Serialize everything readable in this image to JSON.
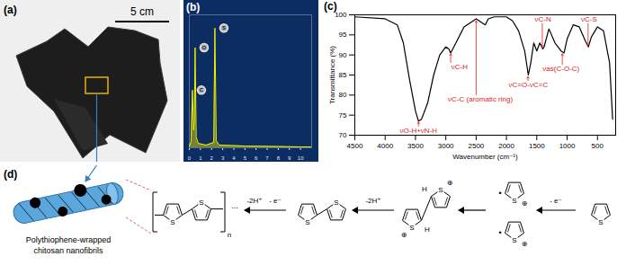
{
  "photo": {
    "label": "(a)",
    "scale_bar": "5 cm"
  },
  "chart_data": [
    {
      "type": "line",
      "title": "(b)",
      "x": [
        0,
        0.15,
        0.28,
        0.38,
        0.45,
        0.52,
        0.62,
        0.8,
        1.5,
        2.2,
        2.3,
        2.42,
        2.7,
        5,
        10,
        11
      ],
      "values": [
        2,
        6,
        65,
        20,
        30,
        113,
        12,
        5,
        3,
        6,
        135,
        8,
        3,
        2,
        1,
        1
      ],
      "color": "#f2ee00",
      "xlim": [
        0,
        11
      ],
      "xticks": [
        0,
        1,
        2,
        3,
        4,
        5,
        6,
        7,
        8,
        9,
        10
      ],
      "ylim": [
        0,
        150
      ],
      "tick_labels": "x",
      "grid": false,
      "annotations": [
        {
          "text": "C",
          "x": 0.28,
          "y": 65
        },
        {
          "text": "O",
          "x": 0.52,
          "y": 113
        },
        {
          "text": "S",
          "x": 2.3,
          "y": 135
        }
      ]
    },
    {
      "type": "line",
      "title": "(c)",
      "x_label": "Wavenumber (cm⁻¹)",
      "y_label": "Transmittance (%)",
      "x": [
        4500,
        4000,
        3800,
        3700,
        3600,
        3500,
        3450,
        3400,
        3300,
        3200,
        3100,
        3000,
        2950,
        2920,
        2850,
        2700,
        2500,
        2400,
        2350,
        2300,
        2200,
        2000,
        1900,
        1800,
        1700,
        1640,
        1600,
        1550,
        1500,
        1450,
        1400,
        1380,
        1300,
        1200,
        1100,
        1050,
        1000,
        900,
        800,
        700,
        650,
        600,
        500,
        400,
        300,
        250
      ],
      "values": [
        99.5,
        99,
        97.5,
        93,
        84,
        76,
        73.5,
        74,
        78,
        85,
        90,
        92,
        91.5,
        90.5,
        92.5,
        97,
        99,
        98,
        97.5,
        99,
        99.5,
        99.5,
        98.5,
        96,
        91,
        85,
        88,
        93,
        91,
        93,
        91.5,
        92,
        96.5,
        93,
        91,
        90.5,
        94,
        97.5,
        97,
        93.5,
        92,
        94.5,
        97,
        96,
        88,
        74
      ],
      "color": "#000000",
      "xlim": [
        4500,
        200
      ],
      "xticks": [
        4500,
        4000,
        3500,
        3000,
        2500,
        2000,
        1500,
        1000,
        500
      ],
      "ylim": [
        70,
        100
      ],
      "yticks": [
        70,
        75,
        80,
        85,
        90,
        95,
        100
      ],
      "grid": false,
      "annotations": [
        {
          "text": "νO-H+νN-H",
          "x": 3450,
          "y": 71.2,
          "target": [
            3450,
            73.3
          ],
          "color": "#e0201b"
        },
        {
          "text": "νC-H",
          "x": 2775,
          "y": 87,
          "target": [
            2920,
            90.3
          ],
          "color": "#e0201b"
        },
        {
          "text": "νC-C (aromatic ring)",
          "x": 2430,
          "y": 79,
          "target": [
            2500,
            98.5
          ],
          "color": "#e0201b"
        },
        {
          "text": "νC=O-νC=C",
          "x": 1640,
          "y": 82.5,
          "target": [
            1645,
            84.6
          ],
          "color": "#e0201b"
        },
        {
          "text": "νC-N",
          "x": 1400,
          "y": 99,
          "target": [
            1410,
            92
          ],
          "color": "#e0201b"
        },
        {
          "text": "νas(C-O-C)",
          "x": 1100,
          "y": 86.5,
          "target": [
            1080,
            90.3
          ],
          "color": "#e0201b"
        },
        {
          "text": "νC-S",
          "x": 640,
          "y": 99,
          "target": [
            655,
            92.3
          ],
          "color": "#e0201b"
        }
      ]
    }
  ],
  "diagram": {
    "label": "(d)",
    "caption": [
      "Polythiophene-wrapped",
      "chitosan nanofibrils"
    ],
    "repeat": "n",
    "ellipsis": "...",
    "atom": "S",
    "hydrogen": "H",
    "cation": "⊕",
    "radical": "•",
    "arrow_labels": [
      [
        "-2H⁺",
        "- e⁻"
      ],
      [
        "-2H⁺"
      ],
      [],
      [
        "- e⁻"
      ]
    ]
  }
}
